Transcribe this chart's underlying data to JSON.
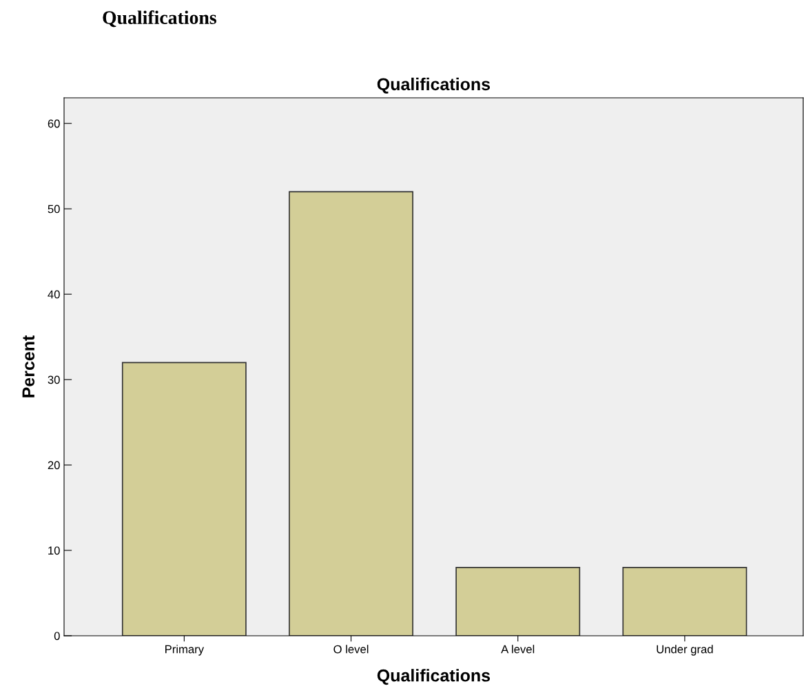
{
  "chart_data": {
    "type": "bar",
    "title": "Qualifications",
    "xlabel": "Qualifications",
    "ylabel": "Percent",
    "annotations": [
      "Qualifications"
    ],
    "categories": [
      "Primary",
      "O level",
      "A level",
      "Under grad"
    ],
    "values": [
      32,
      52,
      8,
      8
    ],
    "color": "#d3ce97",
    "ylim": [
      0,
      63
    ],
    "yticks": [
      0,
      10,
      20,
      30,
      40,
      50,
      60
    ],
    "grid": false,
    "legend": false
  }
}
